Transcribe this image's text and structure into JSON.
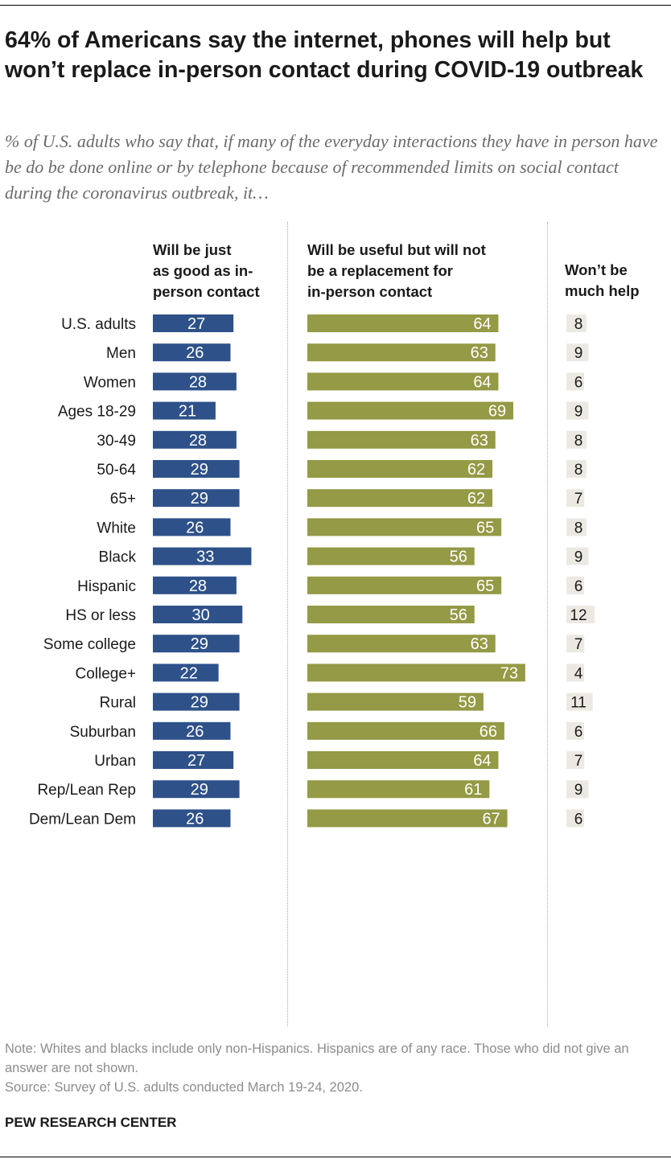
{
  "title": "64% of Americans say the internet, phones will help but won’t replace in-person contact during COVID-19 outbreak",
  "subtitle": "% of U.S. adults who say that, if many of the everyday interactions they have in person have be do be done online or by telephone because of recommended limits on social contact during the coronavirus outbreak, it…",
  "colors": {
    "blue": "#2e5189",
    "green": "#949a45",
    "nohelp_bg": "#ece9e3"
  },
  "chart_data": {
    "type": "bar",
    "orientation": "horizontal",
    "stacked": false,
    "title": "64% of Americans say the internet, phones will help but won’t replace in-person contact during COVID-19 outbreak",
    "series": [
      {
        "name": "Will be just as good as in-person contact",
        "values": [
          27,
          26,
          28,
          21,
          28,
          29,
          29,
          26,
          33,
          28,
          30,
          29,
          22,
          29,
          26,
          27,
          29,
          26
        ]
      },
      {
        "name": "Will be useful but will not be a replacement for in-person contact",
        "values": [
          64,
          63,
          64,
          69,
          63,
          62,
          62,
          65,
          56,
          65,
          56,
          63,
          73,
          59,
          66,
          64,
          61,
          67
        ]
      },
      {
        "name": "Won’t be much help",
        "values": [
          8,
          9,
          6,
          9,
          8,
          8,
          7,
          8,
          9,
          6,
          12,
          7,
          4,
          11,
          6,
          7,
          9,
          6
        ]
      }
    ],
    "categories": [
      "U.S. adults",
      "Men",
      "Women",
      "Ages 18-29",
      "30-49",
      "50-64",
      "65+",
      "White",
      "Black",
      "Hispanic",
      "HS or less",
      "Some college",
      "College+",
      "Rural",
      "Suburban",
      "Urban",
      "Rep/Lean Rep",
      "Dem/Lean Dem"
    ],
    "groups": [
      [
        0
      ],
      [
        1,
        2
      ],
      [
        3,
        4,
        5,
        6
      ],
      [
        7,
        8,
        9
      ],
      [
        10,
        11,
        12
      ],
      [
        13,
        14,
        15
      ],
      [
        16,
        17
      ]
    ],
    "column_headers": [
      [
        "Will be just",
        "as good as in-",
        "person contact"
      ],
      [
        "Will be useful but will not",
        "be a replacement for",
        "in-person contact"
      ],
      [
        "Won’t be",
        "much help"
      ]
    ]
  },
  "note": "Note: Whites and blacks include only non-Hispanics. Hispanics are of any race. Those who did not give an answer are not shown.",
  "source": "Source: Survey of U.S. adults conducted March 19-24, 2020.",
  "org": "PEW RESEARCH CENTER"
}
